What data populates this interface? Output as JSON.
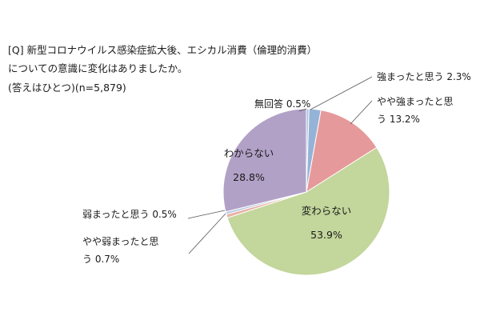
{
  "header": {
    "line1": "[Q] 新型コロナウイルス感染症拡大後、エシカル消費（倫理的消費）",
    "line2": "についての意識に変化はありましたか。",
    "line3": "(答えはひとつ)(n=5,879)"
  },
  "chart_data": {
    "type": "pie",
    "title": "",
    "slices": [
      {
        "name": "無回答",
        "value": 0.5,
        "color": "#a8c4e0",
        "label_lines": [
          "無回答 0.5%"
        ]
      },
      {
        "name": "強まったと思う",
        "value": 2.3,
        "color": "#95b3d7",
        "label_lines": [
          "強まったと思う 2.3%"
        ]
      },
      {
        "name": "やや強まったと思う",
        "value": 13.2,
        "color": "#e6999a",
        "label_lines": [
          "やや強まったと思",
          "う 13.2%"
        ]
      },
      {
        "name": "変わらない",
        "value": 53.9,
        "color": "#c3d69b",
        "label_lines": [
          "変わらない",
          "53.9%"
        ]
      },
      {
        "name": "やや弱まったと思う",
        "value": 0.7,
        "color": "#e8b3a6",
        "label_lines": [
          "やや弱まったと思",
          "う 0.7%"
        ]
      },
      {
        "name": "弱まったと思う",
        "value": 0.5,
        "color": "#b7c9e2",
        "label_lines": [
          "弱まったと思う 0.5%"
        ]
      },
      {
        "name": "わからない",
        "value": 28.8,
        "color": "#b2a1c7",
        "label_lines": [
          "わからない",
          "28.8%"
        ]
      }
    ],
    "start": "12 o'clock, clockwise"
  }
}
